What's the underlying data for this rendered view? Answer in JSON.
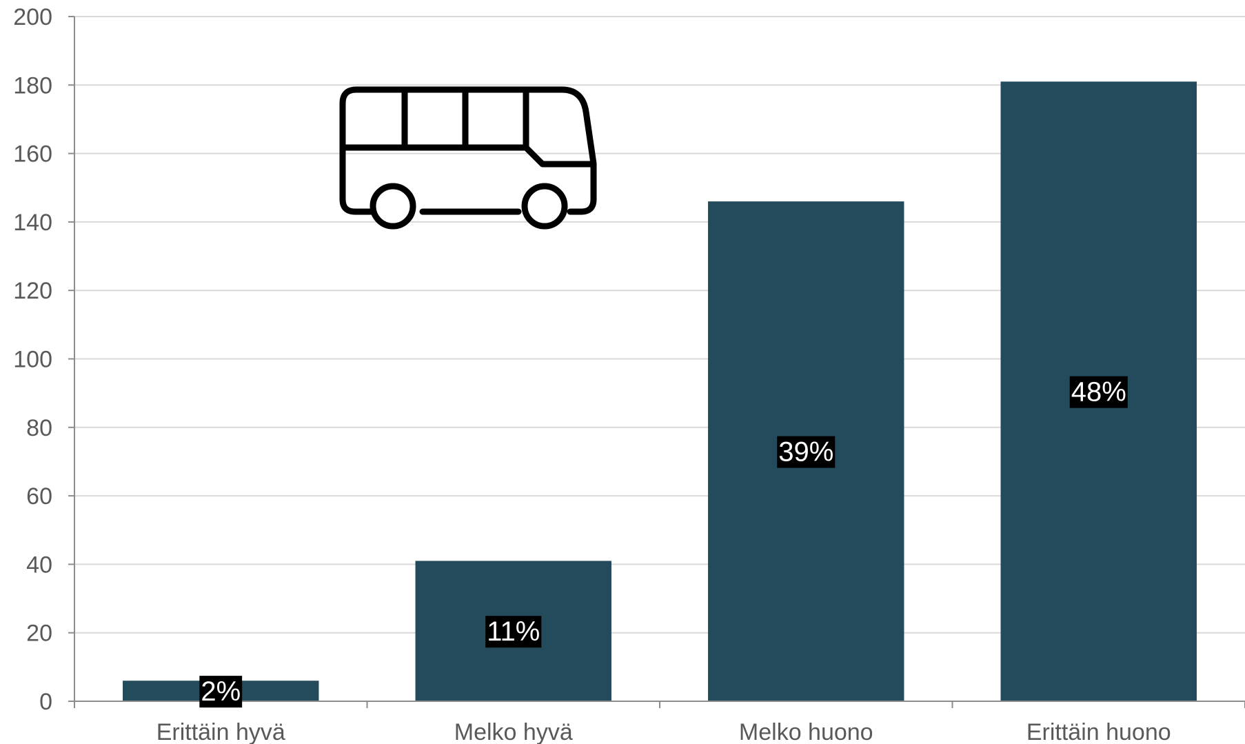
{
  "chart_data": {
    "type": "bar",
    "categories": [
      "Erittäin hyvä",
      "Melko hyvä",
      "Melko huono",
      "Erittäin huono"
    ],
    "values": [
      6,
      41,
      146,
      181
    ],
    "data_labels": [
      "2%",
      "11%",
      "39%",
      "48%"
    ],
    "title": "",
    "xlabel": "",
    "ylabel": "",
    "ylim": [
      0,
      200
    ],
    "yticks": [
      "0",
      "20",
      "40",
      "60",
      "80",
      "100",
      "120",
      "140",
      "160",
      "180",
      "200"
    ],
    "grid": true,
    "legend": "none",
    "colors": {
      "bar": "#234b5b",
      "data_label_bg": "#000000",
      "data_label_text": "#ffffff",
      "grid": "#d9d9d9",
      "axis_text": "#595959"
    },
    "decorations": [
      "bus-icon"
    ]
  }
}
